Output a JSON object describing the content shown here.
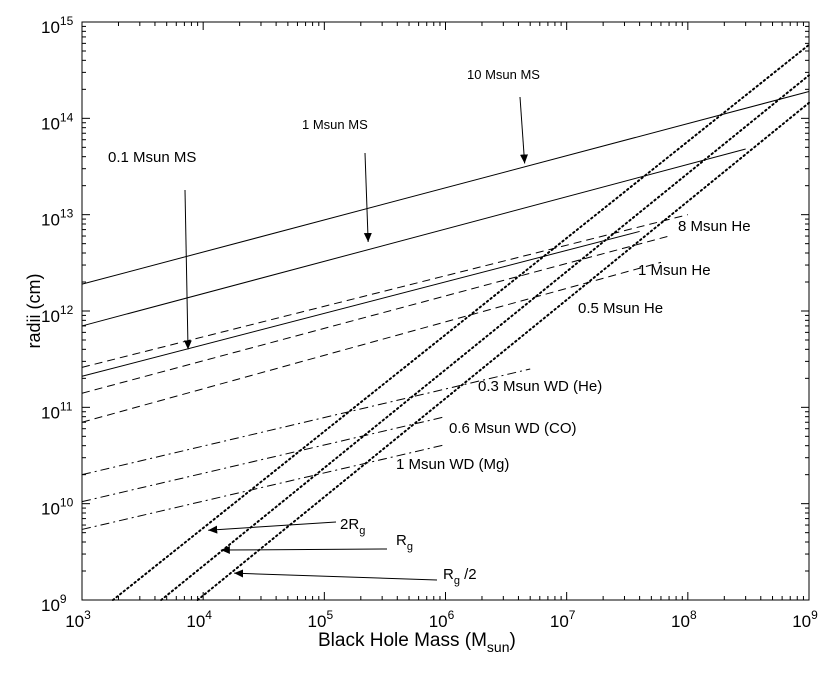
{
  "chart_data": {
    "type": "line",
    "title": "",
    "xlabel": "Black Hole Mass (M",
    "xlabel_sub": "sun",
    "xlabel_close": ")",
    "ylabel": "radii (cm)",
    "x_scale": "log",
    "y_scale": "log",
    "xlim": [
      1000,
      1000000000
    ],
    "ylim": [
      1000000000,
      1000000000000000
    ],
    "x_ticks": [
      {
        "value": 1000,
        "base": "10",
        "exp": "3"
      },
      {
        "value": 10000,
        "base": "10",
        "exp": "4"
      },
      {
        "value": 100000,
        "base": "10",
        "exp": "5"
      },
      {
        "value": 1000000,
        "base": "10",
        "exp": "6"
      },
      {
        "value": 10000000,
        "base": "10",
        "exp": "7"
      },
      {
        "value": 100000000,
        "base": "10",
        "exp": "8"
      },
      {
        "value": 1000000000,
        "base": "10",
        "exp": "9"
      }
    ],
    "y_ticks": [
      {
        "value": 1000000000,
        "base": "10",
        "exp": "9"
      },
      {
        "value": 10000000000,
        "base": "10",
        "exp": "10"
      },
      {
        "value": 100000000000,
        "base": "10",
        "exp": "11"
      },
      {
        "value": 1000000000000,
        "base": "10",
        "exp": "12"
      },
      {
        "value": 10000000000000,
        "base": "10",
        "exp": "13"
      },
      {
        "value": 100000000000000,
        "base": "10",
        "exp": "14"
      },
      {
        "value": 1000000000000000,
        "base": "10",
        "exp": "15"
      }
    ],
    "series": [
      {
        "name": "10 Msun MS",
        "style": "solid",
        "x": [
          1000,
          1000000000
        ],
        "y": [
          1900000000000,
          190000000000000
        ]
      },
      {
        "name": "1 Msun MS",
        "style": "solid",
        "x": [
          1000,
          300000000
        ],
        "y": [
          700000000000,
          48000000000000
        ]
      },
      {
        "name": "0.1 Msun MS",
        "style": "solid",
        "x": [
          1000,
          40000000
        ],
        "y": [
          210000000000,
          6700000000000
        ]
      },
      {
        "name": "8 Msun He",
        "style": "dashed",
        "x": [
          1000,
          100000000
        ],
        "y": [
          260000000000,
          10000000000000
        ]
      },
      {
        "name": "1 Msun He",
        "style": "dashed",
        "x": [
          1000,
          70000000
        ],
        "y": [
          140000000000,
          6000000000000
        ]
      },
      {
        "name": "0.5 Msun He",
        "style": "dashed",
        "x": [
          1000,
          60000000
        ],
        "y": [
          70000000000,
          3200000000000
        ]
      },
      {
        "name": "0.3 Msun WD (He)",
        "style": "dashdot",
        "x": [
          1000,
          5000000
        ],
        "y": [
          20000000000,
          250000000000
        ]
      },
      {
        "name": "0.6 Msun WD (CO)",
        "style": "dashdot",
        "x": [
          1000,
          1000000
        ],
        "y": [
          10500000000,
          80000000000
        ]
      },
      {
        "name": "1 Msun WD (Mg)",
        "style": "dashdot",
        "x": [
          1000,
          1000000
        ],
        "y": [
          5400000000,
          41000000000
        ]
      },
      {
        "name": "2Rg",
        "style": "dotted",
        "x": [
          1800,
          1000000000
        ],
        "y": [
          1000000000,
          580000000000000
        ]
      },
      {
        "name": "Rg",
        "style": "dotted",
        "x": [
          4500,
          1000000000
        ],
        "y": [
          1000000000,
          280000000000000
        ]
      },
      {
        "name": "Rg/2",
        "style": "dotted",
        "x": [
          9000,
          1000000000
        ],
        "y": [
          1000000000,
          145000000000000
        ]
      }
    ],
    "annotations": [
      {
        "text": "10 Msun MS",
        "arrow_to": {
          "x": 4500000,
          "y": 34000000000000
        }
      },
      {
        "text": "1 Msun MS",
        "arrow_to": {
          "x": 230000,
          "y": 5200000000000
        }
      },
      {
        "text": "0.1 Msun MS",
        "arrow_to": {
          "x": 7500,
          "y": 400000000000
        }
      },
      {
        "text": "8 Msun He"
      },
      {
        "text": "1 Msun He"
      },
      {
        "text": "0.5 Msun He"
      },
      {
        "text": "0.3 Msun WD (He)"
      },
      {
        "text": "0.6 Msun WD (CO)"
      },
      {
        "text": "1 Msun WD (Mg)"
      },
      {
        "text": "2R",
        "sub": "g",
        "arrow_to": {
          "x": 11000,
          "y": 5300000000
        }
      },
      {
        "text": "R",
        "sub": "g",
        "arrow_to": {
          "x": 14000,
          "y": 3300000000
        }
      },
      {
        "text": "R",
        "sub": "g",
        "suffix": " /2",
        "arrow_to": {
          "x": 18000,
          "y": 1900000000
        }
      }
    ]
  }
}
